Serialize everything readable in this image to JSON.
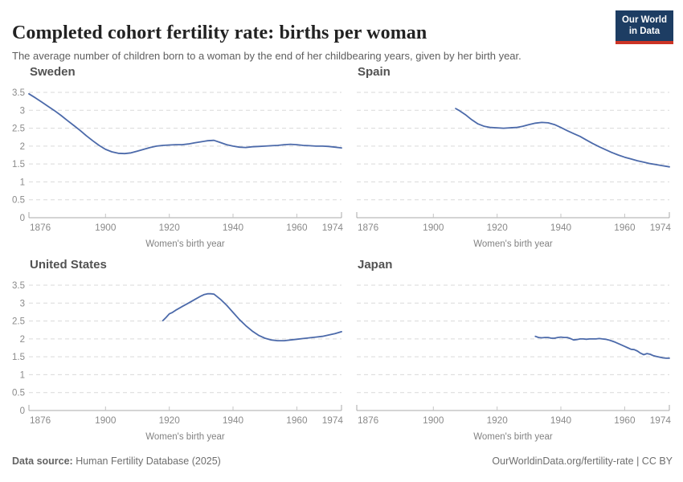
{
  "header": {
    "title": "Completed cohort fertility rate: births per woman",
    "subtitle": "The average number of children born to a woman by the end of her childbearing years, given by her birth year.",
    "logo": {
      "line1": "Our World",
      "line2": "in Data"
    }
  },
  "colors": {
    "line": "#4C6AAA",
    "grid": "#d9d9d9",
    "axis": "#a8a8a8",
    "tick": "#c4c4c4",
    "tick_text": "#8a8a8a",
    "axis_title_text": "#828282",
    "logo_bg": "#1d3d63",
    "logo_red": "#cc3425"
  },
  "axis": {
    "x_label": "Women's birth year",
    "x_ticks": [
      1876,
      1900,
      1920,
      1940,
      1960,
      1974
    ],
    "y_ticks": [
      0,
      0.5,
      1,
      1.5,
      2,
      2.5,
      3,
      3.5
    ],
    "x_domain": [
      1876,
      1974
    ],
    "y_domain": [
      0,
      3.5
    ],
    "grid": "dashed",
    "legend": "none"
  },
  "chart_data": [
    {
      "type": "line",
      "title": "Sweden",
      "y_axis_labels": true,
      "x": [
        1876,
        1878,
        1880,
        1882,
        1884,
        1886,
        1888,
        1890,
        1892,
        1894,
        1896,
        1898,
        1900,
        1902,
        1904,
        1906,
        1908,
        1910,
        1912,
        1914,
        1916,
        1918,
        1920,
        1922,
        1924,
        1926,
        1928,
        1930,
        1932,
        1934,
        1936,
        1938,
        1940,
        1942,
        1944,
        1946,
        1948,
        1950,
        1952,
        1954,
        1956,
        1958,
        1960,
        1962,
        1964,
        1966,
        1968,
        1970,
        1972,
        1974
      ],
      "y": [
        3.46,
        3.35,
        3.23,
        3.11,
        2.99,
        2.86,
        2.72,
        2.58,
        2.44,
        2.29,
        2.15,
        2.02,
        1.91,
        1.84,
        1.8,
        1.79,
        1.81,
        1.86,
        1.91,
        1.96,
        2.0,
        2.02,
        2.03,
        2.04,
        2.04,
        2.06,
        2.09,
        2.12,
        2.15,
        2.16,
        2.1,
        2.04,
        2.0,
        1.97,
        1.96,
        1.98,
        1.99,
        2.0,
        2.01,
        2.02,
        2.04,
        2.05,
        2.04,
        2.02,
        2.01,
        2.0,
        2.0,
        1.99,
        1.97,
        1.95
      ]
    },
    {
      "type": "line",
      "title": "Spain",
      "y_axis_labels": false,
      "x": [
        1907,
        1908,
        1910,
        1912,
        1914,
        1916,
        1918,
        1920,
        1922,
        1924,
        1926,
        1928,
        1930,
        1932,
        1934,
        1936,
        1938,
        1940,
        1942,
        1944,
        1946,
        1948,
        1950,
        1952,
        1954,
        1956,
        1958,
        1960,
        1962,
        1964,
        1966,
        1968,
        1970,
        1972,
        1974
      ],
      "y": [
        3.05,
        3.0,
        2.88,
        2.74,
        2.62,
        2.55,
        2.52,
        2.51,
        2.5,
        2.51,
        2.52,
        2.55,
        2.6,
        2.64,
        2.66,
        2.65,
        2.6,
        2.52,
        2.43,
        2.35,
        2.27,
        2.17,
        2.07,
        1.98,
        1.9,
        1.82,
        1.75,
        1.69,
        1.64,
        1.59,
        1.55,
        1.51,
        1.48,
        1.45,
        1.42
      ]
    },
    {
      "type": "line",
      "title": "United States",
      "y_axis_labels": true,
      "x": [
        1918,
        1919,
        1920,
        1921,
        1922,
        1924,
        1926,
        1928,
        1930,
        1931,
        1932,
        1933,
        1934,
        1936,
        1938,
        1940,
        1942,
        1944,
        1946,
        1948,
        1950,
        1952,
        1954,
        1956,
        1958,
        1960,
        1962,
        1964,
        1966,
        1968,
        1970,
        1972,
        1974
      ],
      "y": [
        2.51,
        2.6,
        2.7,
        2.74,
        2.8,
        2.9,
        3.0,
        3.1,
        3.2,
        3.24,
        3.26,
        3.26,
        3.25,
        3.11,
        2.94,
        2.74,
        2.54,
        2.37,
        2.22,
        2.1,
        2.02,
        1.97,
        1.95,
        1.95,
        1.97,
        1.99,
        2.01,
        2.03,
        2.05,
        2.07,
        2.11,
        2.15,
        2.2
      ]
    },
    {
      "type": "line",
      "title": "Japan",
      "y_axis_labels": false,
      "x": [
        1932,
        1933,
        1934,
        1935,
        1936,
        1937,
        1938,
        1939,
        1940,
        1941,
        1942,
        1943,
        1944,
        1945,
        1946,
        1947,
        1948,
        1949,
        1950,
        1951,
        1952,
        1953,
        1954,
        1955,
        1956,
        1957,
        1958,
        1959,
        1960,
        1961,
        1962,
        1963,
        1964,
        1965,
        1966,
        1967,
        1968,
        1969,
        1970,
        1971,
        1972,
        1973,
        1974
      ],
      "y": [
        2.07,
        2.04,
        2.03,
        2.04,
        2.04,
        2.02,
        2.02,
        2.04,
        2.05,
        2.04,
        2.04,
        2.01,
        1.97,
        1.98,
        2.0,
        2.0,
        1.99,
        2.0,
        2.0,
        2.0,
        2.01,
        2.0,
        1.99,
        1.97,
        1.94,
        1.91,
        1.87,
        1.83,
        1.79,
        1.75,
        1.71,
        1.7,
        1.66,
        1.6,
        1.56,
        1.59,
        1.57,
        1.53,
        1.51,
        1.49,
        1.47,
        1.46,
        1.46
      ]
    }
  ],
  "footer": {
    "source_label": "Data source:",
    "source_text": " Human Fertility Database (2025)",
    "credit": "OurWorldinData.org/fertility-rate | CC BY"
  }
}
